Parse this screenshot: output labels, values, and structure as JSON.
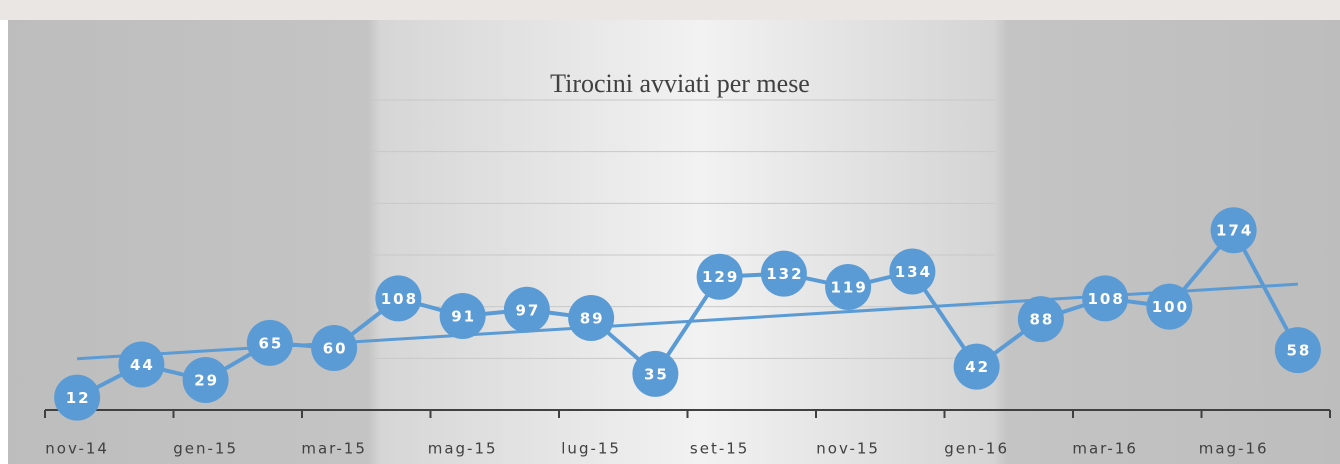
{
  "chart_data": {
    "type": "line",
    "title": "Tirocini avviati per mese",
    "categories": [
      "nov-14",
      null,
      "gen-15",
      null,
      "mar-15",
      null,
      "mag-15",
      null,
      "lug-15",
      null,
      "set-15",
      null,
      "nov-15",
      null,
      "gen-16",
      null,
      "mar-16",
      null,
      "mag-16",
      null
    ],
    "values": [
      12,
      44,
      29,
      65,
      60,
      108,
      91,
      97,
      89,
      35,
      129,
      132,
      119,
      134,
      42,
      88,
      108,
      100,
      174,
      58
    ],
    "color": "#5b9bd5",
    "ylim": [
      0,
      300
    ],
    "yticks": [
      0,
      50,
      100,
      150,
      200,
      250,
      300
    ],
    "grid": true,
    "trendline": true
  }
}
